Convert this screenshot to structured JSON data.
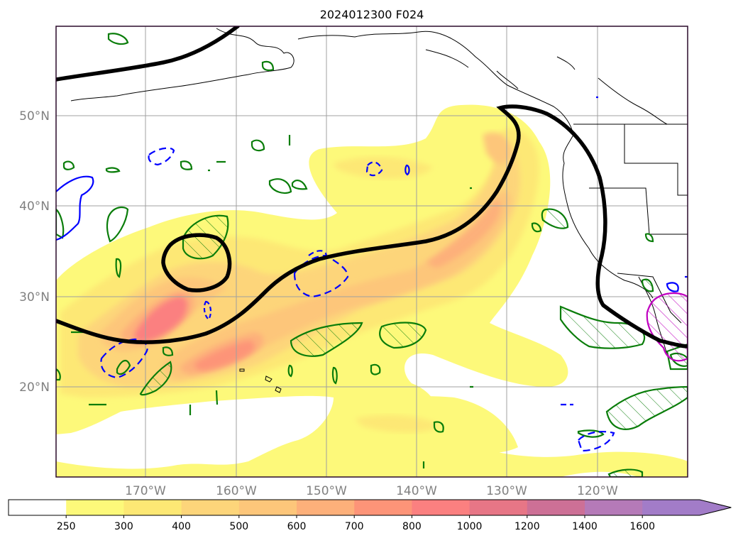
{
  "title": "2024012300 F024",
  "lat_labels": [
    "50°N",
    "40°N",
    "30°N",
    "20°N"
  ],
  "lon_labels": [
    "170°W",
    "160°W",
    "150°W",
    "140°W",
    "130°W",
    "120°W"
  ],
  "colorbar": {
    "levels": [
      "250",
      "300",
      "400",
      "500",
      "600",
      "700",
      "800",
      "1000",
      "1200",
      "1400",
      "1600"
    ],
    "colors": [
      "#ffffff",
      "#fdf97a",
      "#fde874",
      "#fdd57a",
      "#fdc67a",
      "#fdb07a",
      "#fd9478",
      "#fb8080",
      "#e77686",
      "#cd7096",
      "#b57ab8",
      "#a27cc8"
    ],
    "extend": "max"
  },
  "legend_colors": {
    "jet_contour": "#000000",
    "positive_contour": "#0a7d0a",
    "negative_contour": "#0000ff",
    "extreme_contour": "#c000c0"
  }
}
